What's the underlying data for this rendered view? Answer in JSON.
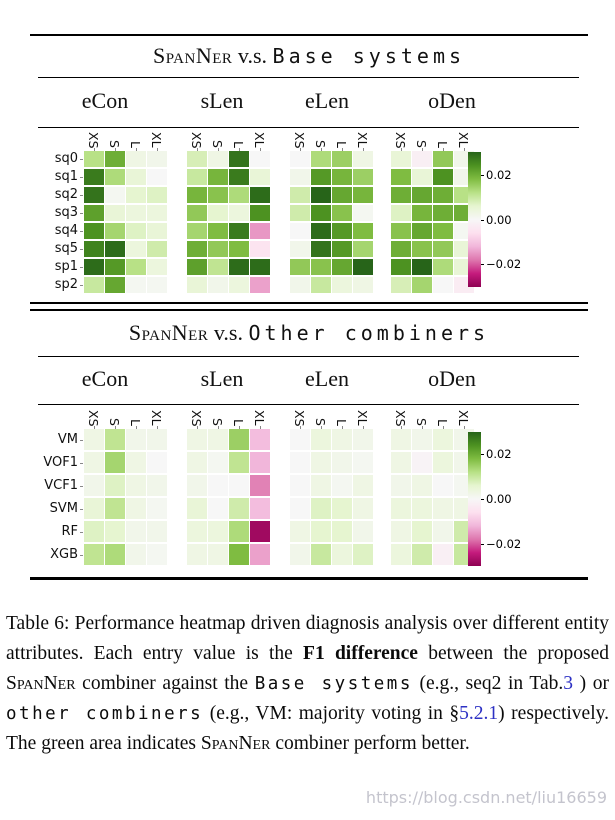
{
  "panels": [
    {
      "title": {
        "name": "SpanNer",
        "vs": "v.s.",
        "comparison": "Base systems"
      }
    },
    {
      "title": {
        "name": "SpanNer",
        "vs": "v.s.",
        "comparison": "Other combiners"
      }
    }
  ],
  "colorbar": {
    "tick_labels": [
      "0.02",
      "0.00",
      "−0.02"
    ],
    "tick_values": [
      0.02,
      0.0,
      -0.02
    ]
  },
  "colormap": {
    "name": "PiYG",
    "stops": [
      "#8e0152",
      "#c51b7d",
      "#de77ae",
      "#f1b6da",
      "#fde0ef",
      "#f7f7f7",
      "#e6f5d0",
      "#b8e186",
      "#7fbc41",
      "#4d9221",
      "#276419"
    ]
  },
  "chart_data": [
    {
      "type": "heatmap",
      "title": "SpanNer v.s. Base systems",
      "col_groups": [
        "eCon",
        "sLen",
        "eLen",
        "oDen"
      ],
      "cols": [
        "XS",
        "S",
        "L",
        "XL"
      ],
      "rows": [
        "sq0",
        "sq1",
        "sq2",
        "sq3",
        "sq4",
        "sq5",
        "sp1",
        "sp2"
      ],
      "vmin": -0.03,
      "vmax": 0.03,
      "values": {
        "eCon": [
          [
            0.012,
            0.02,
            0.003,
            0.002
          ],
          [
            0.027,
            0.013,
            0.005,
            0.0
          ],
          [
            0.028,
            0.001,
            0.006,
            0.007
          ],
          [
            0.022,
            0.005,
            0.004,
            0.004
          ],
          [
            0.024,
            0.014,
            0.007,
            0.005
          ],
          [
            0.026,
            0.029,
            0.004,
            0.009
          ],
          [
            0.029,
            0.023,
            0.012,
            0.004
          ],
          [
            0.01,
            0.021,
            0.001,
            0.001
          ]
        ],
        "sLen": [
          [
            0.008,
            0.003,
            0.028,
            0.0
          ],
          [
            0.01,
            0.019,
            0.027,
            0.005
          ],
          [
            0.019,
            0.017,
            0.013,
            0.029
          ],
          [
            0.016,
            0.006,
            0.004,
            0.024
          ],
          [
            0.014,
            0.018,
            0.027,
            -0.015
          ],
          [
            0.02,
            0.016,
            0.018,
            -0.005
          ],
          [
            0.022,
            0.011,
            0.029,
            0.029
          ],
          [
            0.005,
            0.002,
            0.004,
            -0.014
          ]
        ],
        "eLen": [
          [
            0.0,
            0.013,
            0.015,
            0.003
          ],
          [
            0.002,
            0.023,
            0.019,
            0.015
          ],
          [
            0.009,
            0.03,
            0.021,
            0.019
          ],
          [
            0.009,
            0.024,
            0.017,
            0.001
          ],
          [
            0.0,
            0.029,
            0.023,
            0.018
          ],
          [
            0.002,
            0.028,
            0.023,
            0.014
          ],
          [
            0.016,
            0.017,
            0.021,
            0.03
          ],
          [
            0.002,
            0.01,
            0.004,
            0.003
          ]
        ],
        "oDen": [
          [
            0.005,
            -0.002,
            0.016,
            0.002
          ],
          [
            0.018,
            0.005,
            0.024,
            0.002
          ],
          [
            0.02,
            0.021,
            0.02,
            0.012
          ],
          [
            0.007,
            0.019,
            0.02,
            0.02
          ],
          [
            0.017,
            0.021,
            0.018,
            0.001
          ],
          [
            0.02,
            0.017,
            0.016,
            0.005
          ],
          [
            0.024,
            0.03,
            0.013,
            0.005
          ],
          [
            0.008,
            0.014,
            0.0,
            -0.003
          ]
        ]
      }
    },
    {
      "type": "heatmap",
      "title": "SpanNer v.s. Other combiners",
      "col_groups": [
        "eCon",
        "sLen",
        "eLen",
        "oDen"
      ],
      "cols": [
        "XS",
        "S",
        "L",
        "XL"
      ],
      "rows": [
        "VM",
        "VOF1",
        "VCF1",
        "SVM",
        "RF",
        "XGB"
      ],
      "vmin": -0.03,
      "vmax": 0.03,
      "values": {
        "eCon": [
          [
            0.003,
            0.011,
            0.002,
            0.002
          ],
          [
            0.003,
            0.014,
            0.003,
            0.0
          ],
          [
            0.002,
            0.007,
            0.003,
            0.002
          ],
          [
            0.005,
            0.011,
            0.003,
            0.001
          ],
          [
            0.007,
            0.006,
            0.002,
            0.002
          ],
          [
            0.011,
            0.013,
            0.002,
            0.001
          ]
        ],
        "sLen": [
          [
            0.003,
            0.003,
            0.015,
            -0.011
          ],
          [
            0.003,
            0.001,
            0.011,
            -0.012
          ],
          [
            0.002,
            0.0,
            0.0,
            -0.017
          ],
          [
            0.005,
            0.0,
            0.009,
            -0.011
          ],
          [
            0.004,
            0.004,
            0.013,
            -0.028
          ],
          [
            0.003,
            0.003,
            0.018,
            -0.014
          ]
        ],
        "eLen": [
          [
            0.0,
            0.004,
            0.003,
            0.002
          ],
          [
            0.0,
            0.003,
            0.002,
            0.001
          ],
          [
            0.0,
            0.003,
            0.001,
            0.003
          ],
          [
            0.0,
            0.007,
            0.006,
            0.003
          ],
          [
            0.003,
            0.006,
            0.006,
            0.002
          ],
          [
            0.002,
            0.01,
            0.004,
            0.007
          ]
        ],
        "oDen": [
          [
            0.003,
            0.002,
            0.004,
            0.002
          ],
          [
            0.003,
            -0.001,
            0.004,
            0.002
          ],
          [
            0.002,
            0.003,
            0.0,
            0.001
          ],
          [
            0.004,
            0.004,
            0.003,
            0.003
          ],
          [
            0.003,
            0.006,
            0.002,
            0.009
          ],
          [
            0.004,
            0.009,
            -0.002,
            0.01
          ]
        ]
      }
    }
  ],
  "caption": {
    "segments": [
      {
        "style": "rm",
        "text": "Table 6:  Performance heatmap driven diagnosis analysis over different entity attributes.  Each entry value is the "
      },
      {
        "style": "bf",
        "text": "F1 difference"
      },
      {
        "style": "rm",
        "text": " between the proposed "
      },
      {
        "style": "sc",
        "text": "SpanNer"
      },
      {
        "style": "rm",
        "text": " combiner against the "
      },
      {
        "style": "tt",
        "text": "Base systems"
      },
      {
        "style": "rm",
        "text": " (e.g., seq2 in Tab."
      },
      {
        "style": "link",
        "text": "3"
      },
      {
        "style": "rm",
        "text": " ) or "
      },
      {
        "style": "tt",
        "text": "other combiners"
      },
      {
        "style": "rm",
        "text": " (e.g., VM: majority voting in §"
      },
      {
        "style": "link",
        "text": "5.2.1"
      },
      {
        "style": "rm",
        "text": ") respectively. The green area indicates "
      },
      {
        "style": "sc",
        "text": "SpanNer"
      },
      {
        "style": "rm",
        "text": " combiner perform better."
      }
    ]
  },
  "colors": {
    "link": "#2d31c4",
    "rule": "#000000"
  },
  "watermark": "https://blog.csdn.net/liu16659"
}
